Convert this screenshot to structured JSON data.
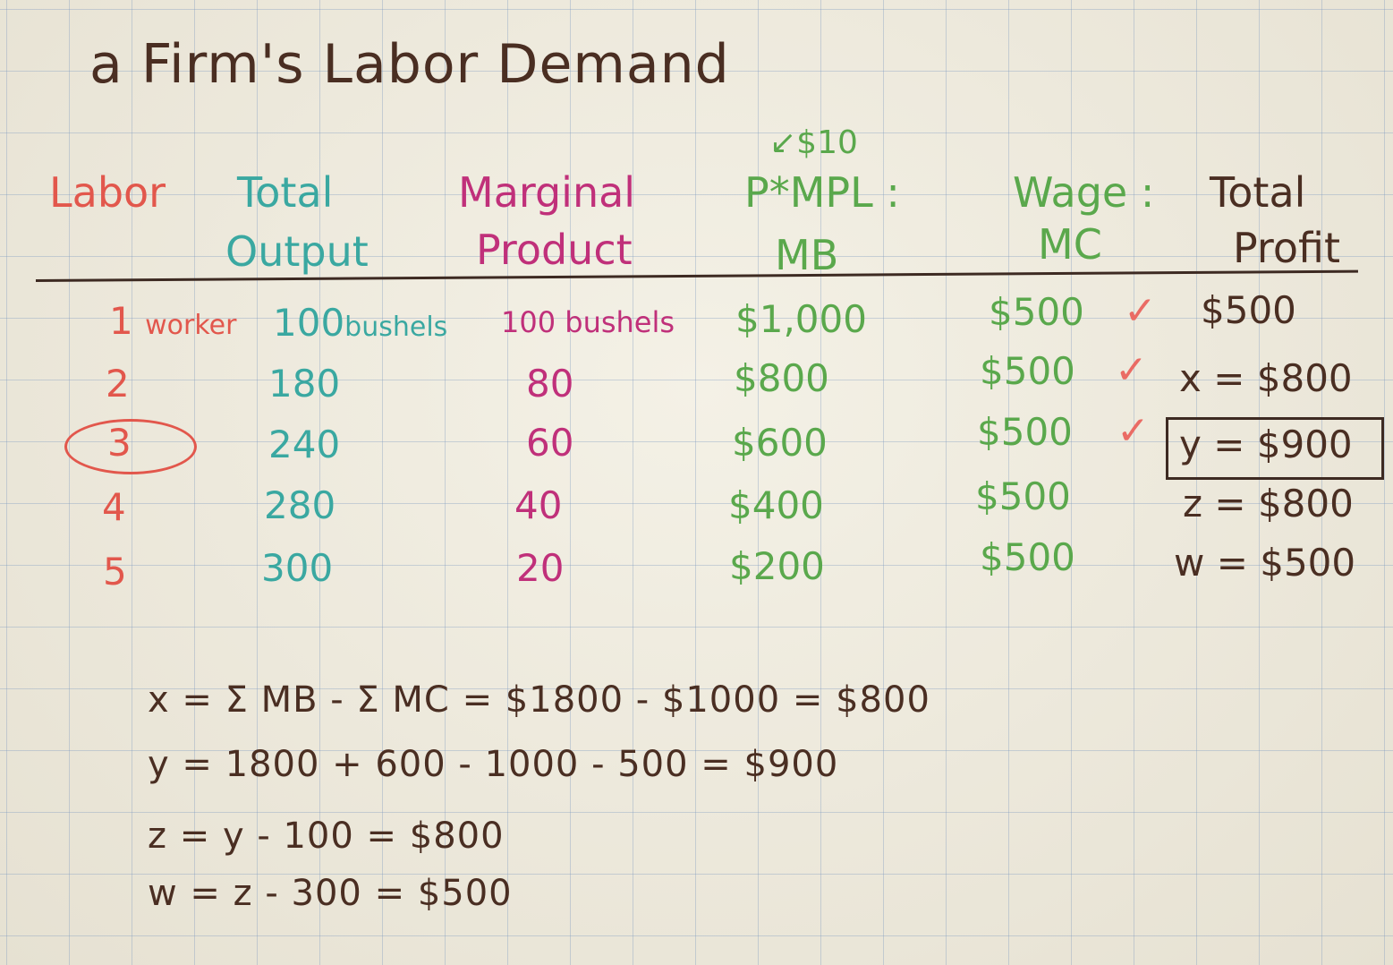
{
  "title": "a Firm's Labor Demand",
  "price_note": "$10",
  "headers": {
    "labor": "Labor",
    "total_output_1": "Total",
    "total_output_2": "Output",
    "marginal_product_1": "Marginal",
    "marginal_product_2": "Product",
    "mb_1": "P*MPL :",
    "mb_2": "MB",
    "mc_1": "Wage :",
    "mc_2": "MC",
    "profit_1": "Total",
    "profit_2": "Profit"
  },
  "rows": [
    {
      "labor": "1",
      "labor_unit": "worker",
      "output": "100",
      "output_unit": "bushels",
      "mp": "100 bushels",
      "mb": "$1,000",
      "mc": "$500",
      "checked": "✓",
      "profit": "$500"
    },
    {
      "labor": "2",
      "output": "180",
      "mp": "80",
      "mb": "$800",
      "mc": "$500",
      "checked": "✓",
      "profit": "x = $800"
    },
    {
      "labor": "3",
      "output": "240",
      "mp": "60",
      "mb": "$600",
      "mc": "$500",
      "checked": "✓",
      "profit": "y = $900"
    },
    {
      "labor": "4",
      "output": "280",
      "mp": "40",
      "mb": "$400",
      "mc": "$500",
      "checked": "",
      "profit": "z = $800"
    },
    {
      "labor": "5",
      "output": "300",
      "mp": "20",
      "mb": "$200",
      "mc": "$500",
      "checked": "",
      "profit": "w = $500"
    }
  ],
  "equations": [
    "x = Σ MB - Σ MC = $1800 - $1000 = $800",
    "y = 1800 + 600 - 1000 - 500 = $900",
    "z = y - 100 = $800",
    "w = z - 300 = $500"
  ],
  "colors": {
    "labor": "#e2574c",
    "output": "#3aa8a1",
    "mp": "#c0307a",
    "mb_mc": "#5aa84c",
    "profit": "#4a2e22"
  }
}
